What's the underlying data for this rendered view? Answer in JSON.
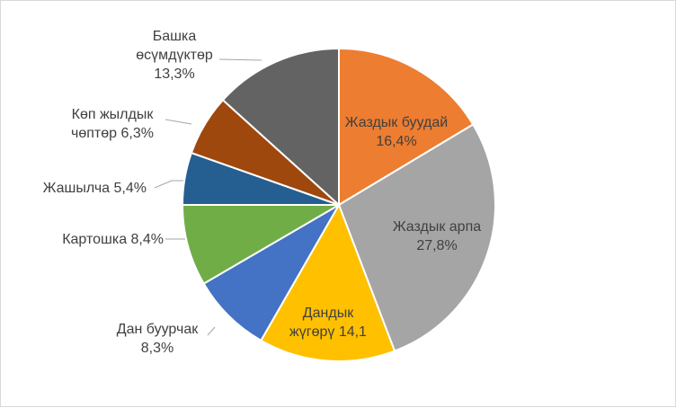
{
  "chart_data": {
    "type": "pie",
    "title": "",
    "slices": [
      {
        "label_lines": [
          "Жаздык буудай",
          "16,4%"
        ],
        "value": 16.4,
        "color": "#ED7D31",
        "label_inside": true
      },
      {
        "label_lines": [
          "Жаздык арпа",
          "27,8%"
        ],
        "value": 27.8,
        "color": "#A5A5A5",
        "label_inside": true
      },
      {
        "label_lines": [
          "Дандык",
          "жүгөрү 14,1"
        ],
        "value": 14.1,
        "color": "#FFC000",
        "label_inside": true
      },
      {
        "label_lines": [
          "Дан буурчак",
          "8,3%"
        ],
        "value": 8.3,
        "color": "#4472C4",
        "label_inside": false
      },
      {
        "label_lines": [
          "Картошка 8,4%"
        ],
        "value": 8.4,
        "color": "#70AD47",
        "label_inside": false
      },
      {
        "label_lines": [
          "Жашылча 5,4%"
        ],
        "value": 5.4,
        "color": "#255E91",
        "label_inside": false
      },
      {
        "label_lines": [
          "Көп жылдык",
          "чөптөр 6,3%"
        ],
        "value": 6.3,
        "color": "#9E480E",
        "label_inside": false
      },
      {
        "label_lines": [
          "Башка",
          "өсүмдүктөр",
          "13,3%"
        ],
        "value": 13.3,
        "color": "#636363",
        "label_inside": false
      }
    ],
    "start_angle_deg": 0,
    "direction": "clockwise",
    "legend": "none",
    "label_color": "#404040",
    "leader_line_color": "#a6a6a6"
  }
}
